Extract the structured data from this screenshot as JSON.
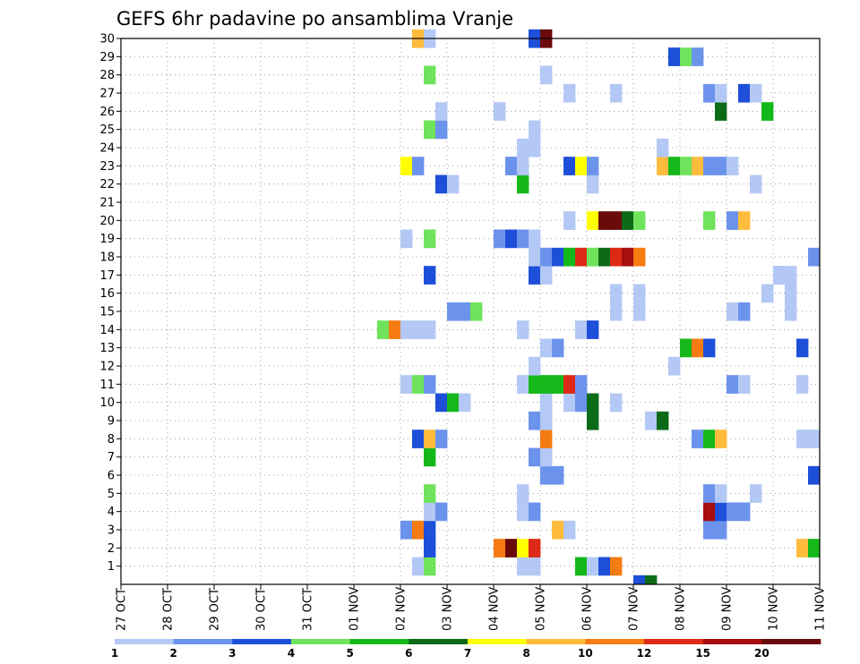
{
  "chart_data": {
    "type": "heatmap",
    "title": "GEFS 6hr padavine po ansamblima Vranje",
    "x_ticks": [
      "27 OCT",
      "28 OCT",
      "29 OCT",
      "30 OCT",
      "31 OCT",
      "01 NOV",
      "02 NOV",
      "03 NOV",
      "04 NOV",
      "05 NOV",
      "06 NOV",
      "07 NOV",
      "08 NOV",
      "09 NOV",
      "10 NOV",
      "11 NOV"
    ],
    "y_ticks": [
      1,
      2,
      3,
      4,
      5,
      6,
      7,
      8,
      9,
      10,
      11,
      12,
      13,
      14,
      15,
      16,
      17,
      18,
      19,
      20,
      21,
      22,
      23,
      24,
      25,
      26,
      27,
      28,
      29,
      30
    ],
    "x_range_days": [
      0,
      15
    ],
    "y_range": [
      0,
      30
    ],
    "grid": true,
    "colorbar": {
      "labels": [
        "1",
        "2",
        "3",
        "4",
        "5",
        "6",
        "7",
        "8",
        "10",
        "12",
        "15",
        "20"
      ],
      "colors": [
        "#b4c8f5",
        "#6c93ec",
        "#1d4fd8",
        "#6fe35b",
        "#15b81a",
        "#0d6b18",
        "#ffff00",
        "#ffbb3c",
        "#f57b12",
        "#dc2a16",
        "#a80e0e",
        "#6b0a0a"
      ]
    },
    "cells": [
      {
        "d": 0.0,
        "m": 0,
        "c": 0
      },
      {
        "d": 0.0,
        "m": 0,
        "c": 0
      },
      {
        "d": 11.0,
        "m": 0,
        "c": 2
      },
      {
        "d": 11.25,
        "m": 0,
        "c": 5
      },
      {
        "d": 6.25,
        "m": 1,
        "c": 0
      },
      {
        "d": 6.5,
        "m": 1,
        "c": 3
      },
      {
        "d": 8.5,
        "m": 1,
        "c": 0
      },
      {
        "d": 8.75,
        "m": 1,
        "c": 0
      },
      {
        "d": 9.75,
        "m": 1,
        "c": 4
      },
      {
        "d": 10.0,
        "m": 1,
        "c": 0
      },
      {
        "d": 10.25,
        "m": 1,
        "c": 2
      },
      {
        "d": 10.5,
        "m": 1,
        "c": 8
      },
      {
        "d": 6.5,
        "m": 2,
        "c": 2
      },
      {
        "d": 8.0,
        "m": 2,
        "c": 8
      },
      {
        "d": 8.25,
        "m": 2,
        "c": 11
      },
      {
        "d": 8.5,
        "m": 2,
        "c": 6
      },
      {
        "d": 8.75,
        "m": 2,
        "c": 9
      },
      {
        "d": 14.5,
        "m": 2,
        "c": 7
      },
      {
        "d": 14.75,
        "m": 2,
        "c": 4
      },
      {
        "d": 6.0,
        "m": 3,
        "c": 1
      },
      {
        "d": 6.25,
        "m": 3,
        "c": 8
      },
      {
        "d": 6.5,
        "m": 3,
        "c": 2
      },
      {
        "d": 9.25,
        "m": 3,
        "c": 7
      },
      {
        "d": 9.5,
        "m": 3,
        "c": 0
      },
      {
        "d": 12.5,
        "m": 3,
        "c": 1
      },
      {
        "d": 12.75,
        "m": 3,
        "c": 1
      },
      {
        "d": 6.5,
        "m": 4,
        "c": 0
      },
      {
        "d": 6.75,
        "m": 4,
        "c": 1
      },
      {
        "d": 8.5,
        "m": 4,
        "c": 0
      },
      {
        "d": 8.75,
        "m": 4,
        "c": 1
      },
      {
        "d": 12.5,
        "m": 4,
        "c": 10
      },
      {
        "d": 12.75,
        "m": 4,
        "c": 2
      },
      {
        "d": 13.0,
        "m": 4,
        "c": 1
      },
      {
        "d": 13.25,
        "m": 4,
        "c": 1
      },
      {
        "d": 6.5,
        "m": 5,
        "c": 3
      },
      {
        "d": 8.5,
        "m": 5,
        "c": 0
      },
      {
        "d": 12.5,
        "m": 5,
        "c": 1
      },
      {
        "d": 12.75,
        "m": 5,
        "c": 0
      },
      {
        "d": 13.5,
        "m": 5,
        "c": 0
      },
      {
        "d": 9.0,
        "m": 6,
        "c": 1
      },
      {
        "d": 9.25,
        "m": 6,
        "c": 1
      },
      {
        "d": 14.75,
        "m": 6,
        "c": 2
      },
      {
        "d": 6.5,
        "m": 7,
        "c": 4
      },
      {
        "d": 8.75,
        "m": 7,
        "c": 1
      },
      {
        "d": 9.0,
        "m": 7,
        "c": 0
      },
      {
        "d": 6.25,
        "m": 8,
        "c": 2
      },
      {
        "d": 6.5,
        "m": 8,
        "c": 7
      },
      {
        "d": 6.75,
        "m": 8,
        "c": 1
      },
      {
        "d": 9.0,
        "m": 8,
        "c": 8
      },
      {
        "d": 12.25,
        "m": 8,
        "c": 1
      },
      {
        "d": 12.5,
        "m": 8,
        "c": 4
      },
      {
        "d": 12.75,
        "m": 8,
        "c": 7
      },
      {
        "d": 14.5,
        "m": 8,
        "c": 0
      },
      {
        "d": 14.75,
        "m": 8,
        "c": 0
      },
      {
        "d": 8.75,
        "m": 9,
        "c": 1
      },
      {
        "d": 9.0,
        "m": 9,
        "c": 0
      },
      {
        "d": 10.0,
        "m": 9,
        "c": 5
      },
      {
        "d": 11.25,
        "m": 9,
        "c": 0
      },
      {
        "d": 11.5,
        "m": 9,
        "c": 5
      },
      {
        "d": 6.75,
        "m": 10,
        "c": 2
      },
      {
        "d": 7.0,
        "m": 10,
        "c": 4
      },
      {
        "d": 7.25,
        "m": 10,
        "c": 0
      },
      {
        "d": 9.0,
        "m": 10,
        "c": 0
      },
      {
        "d": 9.5,
        "m": 10,
        "c": 0
      },
      {
        "d": 9.75,
        "m": 10,
        "c": 1
      },
      {
        "d": 10.0,
        "m": 10,
        "c": 5
      },
      {
        "d": 10.5,
        "m": 10,
        "c": 0
      },
      {
        "d": 6.0,
        "m": 11,
        "c": 0
      },
      {
        "d": 6.25,
        "m": 11,
        "c": 3
      },
      {
        "d": 6.5,
        "m": 11,
        "c": 1
      },
      {
        "d": 8.5,
        "m": 11,
        "c": 0
      },
      {
        "d": 8.75,
        "m": 11,
        "c": 4
      },
      {
        "d": 9.0,
        "m": 11,
        "c": 4
      },
      {
        "d": 9.25,
        "m": 11,
        "c": 4
      },
      {
        "d": 9.5,
        "m": 11,
        "c": 9
      },
      {
        "d": 9.75,
        "m": 11,
        "c": 1
      },
      {
        "d": 13.0,
        "m": 11,
        "c": 1
      },
      {
        "d": 13.25,
        "m": 11,
        "c": 0
      },
      {
        "d": 14.5,
        "m": 11,
        "c": 0
      },
      {
        "d": 8.75,
        "m": 12,
        "c": 0
      },
      {
        "d": 11.75,
        "m": 12,
        "c": 0
      },
      {
        "d": 9.0,
        "m": 13,
        "c": 0
      },
      {
        "d": 9.25,
        "m": 13,
        "c": 1
      },
      {
        "d": 12.0,
        "m": 13,
        "c": 4
      },
      {
        "d": 12.25,
        "m": 13,
        "c": 8
      },
      {
        "d": 12.5,
        "m": 13,
        "c": 2
      },
      {
        "d": 14.5,
        "m": 13,
        "c": 2
      },
      {
        "d": 5.5,
        "m": 14,
        "c": 3
      },
      {
        "d": 5.75,
        "m": 14,
        "c": 8
      },
      {
        "d": 6.0,
        "m": 14,
        "c": 0
      },
      {
        "d": 6.25,
        "m": 14,
        "c": 0
      },
      {
        "d": 6.5,
        "m": 14,
        "c": 0
      },
      {
        "d": 8.5,
        "m": 14,
        "c": 0
      },
      {
        "d": 9.75,
        "m": 14,
        "c": 0
      },
      {
        "d": 10.0,
        "m": 14,
        "c": 2
      },
      {
        "d": 7.0,
        "m": 15,
        "c": 1
      },
      {
        "d": 7.25,
        "m": 15,
        "c": 1
      },
      {
        "d": 7.5,
        "m": 15,
        "c": 3
      },
      {
        "d": 10.5,
        "m": 15,
        "c": 0
      },
      {
        "d": 11.0,
        "m": 15,
        "c": 0
      },
      {
        "d": 13.0,
        "m": 15,
        "c": 0
      },
      {
        "d": 13.25,
        "m": 15,
        "c": 1
      },
      {
        "d": 14.25,
        "m": 15,
        "c": 0
      },
      {
        "d": 10.5,
        "m": 16,
        "c": 0
      },
      {
        "d": 11.0,
        "m": 16,
        "c": 0
      },
      {
        "d": 13.75,
        "m": 16,
        "c": 0
      },
      {
        "d": 14.25,
        "m": 16,
        "c": 0
      },
      {
        "d": 6.5,
        "m": 17,
        "c": 2
      },
      {
        "d": 8.75,
        "m": 17,
        "c": 2
      },
      {
        "d": 9.0,
        "m": 17,
        "c": 0
      },
      {
        "d": 14.0,
        "m": 17,
        "c": 0
      },
      {
        "d": 14.0,
        "m": 17,
        "c": 0
      },
      {
        "d": 14.25,
        "m": 17,
        "c": 0
      },
      {
        "d": 14.0,
        "m": 17,
        "c": 0
      },
      {
        "d": 8.75,
        "m": 18,
        "c": 0
      },
      {
        "d": 9.0,
        "m": 18,
        "c": 1
      },
      {
        "d": 9.25,
        "m": 18,
        "c": 2
      },
      {
        "d": 9.5,
        "m": 18,
        "c": 4
      },
      {
        "d": 9.75,
        "m": 18,
        "c": 9
      },
      {
        "d": 10.0,
        "m": 18,
        "c": 3
      },
      {
        "d": 10.25,
        "m": 18,
        "c": 5
      },
      {
        "d": 10.5,
        "m": 18,
        "c": 9
      },
      {
        "d": 10.75,
        "m": 18,
        "c": 10
      },
      {
        "d": 11.0,
        "m": 18,
        "c": 8
      },
      {
        "d": 14.75,
        "m": 18,
        "c": 1
      },
      {
        "d": 6.0,
        "m": 19,
        "c": 0
      },
      {
        "d": 6.5,
        "m": 19,
        "c": 3
      },
      {
        "d": 8.0,
        "m": 19,
        "c": 1
      },
      {
        "d": 8.25,
        "m": 19,
        "c": 2
      },
      {
        "d": 8.5,
        "m": 19,
        "c": 1
      },
      {
        "d": 8.75,
        "m": 19,
        "c": 0
      },
      {
        "d": 9.5,
        "m": 20,
        "c": 0
      },
      {
        "d": 10.0,
        "m": 20,
        "c": 6
      },
      {
        "d": 10.25,
        "m": 20,
        "c": 11
      },
      {
        "d": 10.5,
        "m": 20,
        "c": 11
      },
      {
        "d": 10.75,
        "m": 20,
        "c": 5
      },
      {
        "d": 11.0,
        "m": 20,
        "c": 3
      },
      {
        "d": 12.5,
        "m": 20,
        "c": 3
      },
      {
        "d": 13.0,
        "m": 20,
        "c": 1
      },
      {
        "d": 13.25,
        "m": 20,
        "c": 7
      },
      {
        "d": 6.75,
        "m": 22,
        "c": 2
      },
      {
        "d": 7.0,
        "m": 22,
        "c": 0
      },
      {
        "d": 8.5,
        "m": 22,
        "c": 4
      },
      {
        "d": 10.0,
        "m": 22,
        "c": 0
      },
      {
        "d": 13.5,
        "m": 22,
        "c": 0
      },
      {
        "d": 6.0,
        "m": 23,
        "c": 6
      },
      {
        "d": 6.25,
        "m": 23,
        "c": 1
      },
      {
        "d": 8.25,
        "m": 23,
        "c": 1
      },
      {
        "d": 8.5,
        "m": 23,
        "c": 0
      },
      {
        "d": 9.5,
        "m": 23,
        "c": 2
      },
      {
        "d": 9.75,
        "m": 23,
        "c": 6
      },
      {
        "d": 10.0,
        "m": 23,
        "c": 1
      },
      {
        "d": 11.5,
        "m": 23,
        "c": 7
      },
      {
        "d": 11.75,
        "m": 23,
        "c": 4
      },
      {
        "d": 12.0,
        "m": 23,
        "c": 3
      },
      {
        "d": 12.25,
        "m": 23,
        "c": 7
      },
      {
        "d": 12.5,
        "m": 23,
        "c": 1
      },
      {
        "d": 12.75,
        "m": 23,
        "c": 1
      },
      {
        "d": 13.0,
        "m": 23,
        "c": 0
      },
      {
        "d": 8.5,
        "m": 24,
        "c": 0
      },
      {
        "d": 8.75,
        "m": 24,
        "c": 0
      },
      {
        "d": 11.5,
        "m": 24,
        "c": 0
      },
      {
        "d": 6.5,
        "m": 25,
        "c": 3
      },
      {
        "d": 6.75,
        "m": 25,
        "c": 1
      },
      {
        "d": 8.75,
        "m": 25,
        "c": 0
      },
      {
        "d": 6.75,
        "m": 26,
        "c": 0
      },
      {
        "d": 8.0,
        "m": 26,
        "c": 0
      },
      {
        "d": 12.75,
        "m": 26,
        "c": 5
      },
      {
        "d": 13.75,
        "m": 26,
        "c": 4
      },
      {
        "d": 9.5,
        "m": 27,
        "c": 0
      },
      {
        "d": 10.5,
        "m": 27,
        "c": 0
      },
      {
        "d": 12.5,
        "m": 27,
        "c": 1
      },
      {
        "d": 12.75,
        "m": 27,
        "c": 0
      },
      {
        "d": 13.25,
        "m": 27,
        "c": 2
      },
      {
        "d": 13.5,
        "m": 27,
        "c": 0
      },
      {
        "d": 6.5,
        "m": 28,
        "c": 3
      },
      {
        "d": 9.0,
        "m": 28,
        "c": 0
      },
      {
        "d": 11.75,
        "m": 29,
        "c": 2
      },
      {
        "d": 12.0,
        "m": 29,
        "c": 3
      },
      {
        "d": 12.25,
        "m": 29,
        "c": 1
      },
      {
        "d": 6.25,
        "m": 30,
        "c": 7
      },
      {
        "d": 6.5,
        "m": 30,
        "c": 0
      },
      {
        "d": 8.75,
        "m": 30,
        "c": 2
      },
      {
        "d": 9.0,
        "m": 30,
        "c": 11
      }
    ]
  }
}
